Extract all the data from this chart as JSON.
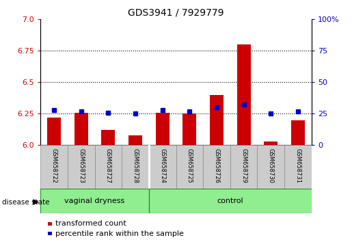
{
  "title": "GDS3941 / 7929779",
  "samples": [
    "GSM658722",
    "GSM658723",
    "GSM658727",
    "GSM658728",
    "GSM658724",
    "GSM658725",
    "GSM658726",
    "GSM658729",
    "GSM658730",
    "GSM658731"
  ],
  "red_values": [
    6.22,
    6.26,
    6.12,
    6.08,
    6.26,
    6.25,
    6.4,
    6.8,
    6.03,
    6.2
  ],
  "blue_values": [
    28,
    27,
    26,
    25,
    28,
    27,
    30,
    32,
    25,
    27
  ],
  "ylim": [
    6.0,
    7.0
  ],
  "yticks_left": [
    6.0,
    6.25,
    6.5,
    6.75,
    7.0
  ],
  "yticks_right": [
    0,
    25,
    50,
    75,
    100
  ],
  "dotted_lines": [
    6.25,
    6.5,
    6.75
  ],
  "groups": [
    {
      "label": "vaginal dryness",
      "start": 0,
      "end": 4
    },
    {
      "label": "control",
      "start": 4,
      "end": 10
    }
  ],
  "bar_color": "#CC0000",
  "dot_color": "#0000CC",
  "left_tick_color": "#CC0000",
  "right_tick_color": "#0000CC",
  "legend_items": [
    "transformed count",
    "percentile rank within the sample"
  ],
  "disease_state_label": "disease state",
  "group_fill": "#90EE90",
  "group_edge": "#228B22",
  "cell_fill": "#CCCCCC",
  "cell_edge": "#888888"
}
